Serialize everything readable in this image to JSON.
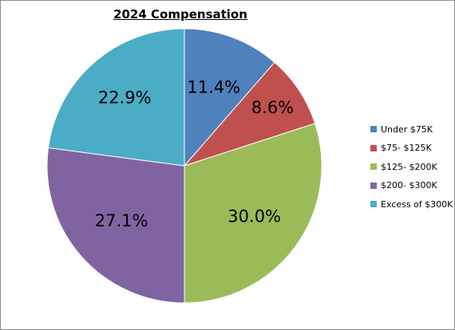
{
  "chart_data": {
    "type": "pie",
    "title": "2024 Compensation",
    "categories": [
      "Under $75K",
      "$75- $125K",
      "$125- $200K",
      "$200- $300K",
      "Excess of $300K"
    ],
    "values": [
      11.4,
      8.6,
      30.0,
      27.1,
      22.9
    ],
    "data_labels": [
      "11.4%",
      "8.6%",
      "30.0%",
      "27.1%",
      "22.9%"
    ],
    "colors": [
      "#4f81bd",
      "#c0504d",
      "#9bbb59",
      "#8064a2",
      "#4bacc6"
    ],
    "legend_position": "right"
  }
}
